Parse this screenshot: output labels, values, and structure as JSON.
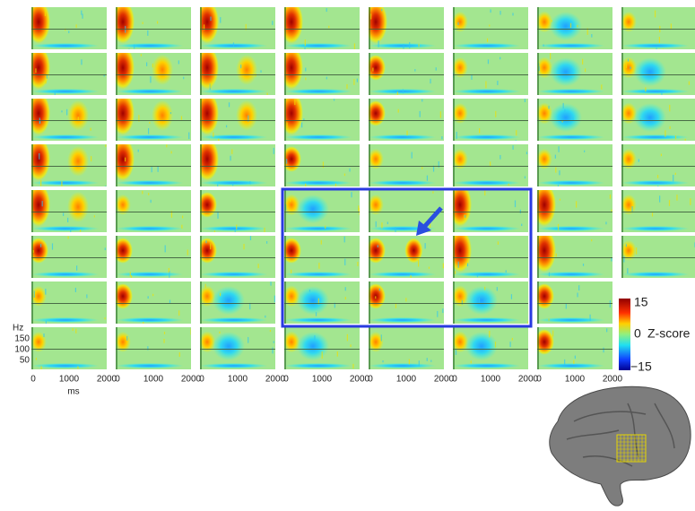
{
  "time_axis": {
    "ticks": [
      "0",
      "1000",
      "2000"
    ],
    "label": "ms"
  },
  "frequency_axis": {
    "label": "Hz",
    "ticks": [
      "150",
      "100",
      "50"
    ]
  },
  "colorbar": {
    "max": "15",
    "mid": "0",
    "min": "−15",
    "label": "Z-score"
  }
}
